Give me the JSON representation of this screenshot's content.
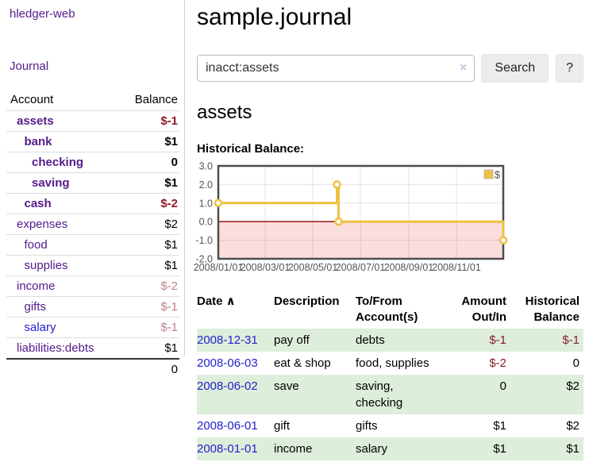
{
  "brand": "hledger-web",
  "nav": {
    "journal": "Journal"
  },
  "sidebar": {
    "header": {
      "account": "Account",
      "balance": "Balance"
    },
    "accounts": [
      {
        "name": "assets",
        "balance": "$-1",
        "level": 1,
        "bold": true,
        "balance_tone": "negative-strong",
        "link_color": "purple"
      },
      {
        "name": "bank",
        "balance": "$1",
        "level": 2,
        "bold": true,
        "balance_tone": "normal",
        "link_color": "purple"
      },
      {
        "name": "checking",
        "balance": "0",
        "level": 3,
        "bold": true,
        "balance_tone": "normal",
        "link_color": "purple"
      },
      {
        "name": "saving",
        "balance": "$1",
        "level": 3,
        "bold": true,
        "balance_tone": "normal",
        "link_color": "purple"
      },
      {
        "name": "cash",
        "balance": "$-2",
        "level": 2,
        "bold": true,
        "balance_tone": "negative-strong",
        "link_color": "purple"
      },
      {
        "name": "expenses",
        "balance": "$2",
        "level": 1,
        "bold": false,
        "balance_tone": "normal",
        "link_color": "purple"
      },
      {
        "name": "food",
        "balance": "$1",
        "level": 2,
        "bold": false,
        "balance_tone": "normal",
        "link_color": "purple"
      },
      {
        "name": "supplies",
        "balance": "$1",
        "level": 2,
        "bold": false,
        "balance_tone": "normal",
        "link_color": "purple"
      },
      {
        "name": "income",
        "balance": "$-2",
        "level": 1,
        "bold": false,
        "balance_tone": "negative-soft",
        "link_color": "purple"
      },
      {
        "name": "gifts",
        "balance": "$-1",
        "level": 2,
        "bold": false,
        "balance_tone": "negative-soft",
        "link_color": "purple"
      },
      {
        "name": "salary",
        "balance": "$-1",
        "level": 2,
        "bold": false,
        "balance_tone": "negative-soft",
        "link_color": "blue"
      },
      {
        "name": "liabilities:debts",
        "balance": "$1",
        "level": 1,
        "bold": false,
        "balance_tone": "normal",
        "link_color": "purple"
      }
    ],
    "total": "0"
  },
  "header": {
    "title": "sample.journal"
  },
  "search": {
    "value": "inacct:assets",
    "clear_icon": "×",
    "search_button": "Search",
    "help_button": "?"
  },
  "account_view": {
    "title": "assets",
    "chart_heading": "Historical Balance:"
  },
  "chart_data": {
    "type": "line",
    "title": "Historical Balance",
    "step": true,
    "xrange": [
      "2008-01-01",
      "2008-12-31"
    ],
    "ylim": [
      -2,
      3
    ],
    "yticks": [
      3.0,
      2.0,
      1.0,
      0.0,
      -1.0,
      -2.0
    ],
    "xticks": [
      "2008/01/01",
      "2008/03/01",
      "2008/05/01",
      "2008/07/01",
      "2008/09/01",
      "2008/11/01"
    ],
    "series": [
      {
        "name": "$",
        "color": "#edc240",
        "points": [
          {
            "date": "2008-01-01",
            "value": 1
          },
          {
            "date": "2008-06-01",
            "value": 2
          },
          {
            "date": "2008-06-03",
            "value": 0
          },
          {
            "date": "2008-12-31",
            "value": -1
          }
        ]
      }
    ],
    "legend_position": "top-right",
    "grid": true,
    "negative_region_color": "#fbdddd",
    "zero_line_color": "#8b0000",
    "axis_text_color": "#545454",
    "border_color": "#4d4d4d"
  },
  "register": {
    "columns": [
      {
        "label": "Date",
        "sort_icon": "∧",
        "align": "left"
      },
      {
        "label": "Description",
        "align": "left"
      },
      {
        "label": "To/From Account(s)",
        "align": "left"
      },
      {
        "label": "Amount Out/In",
        "align": "right"
      },
      {
        "label": "Historical Balance",
        "align": "right"
      }
    ],
    "rows": [
      {
        "date": "2008-12-31",
        "description": "pay off",
        "accounts": "debts",
        "amount": "$-1",
        "amount_negative": true,
        "balance": "$-1",
        "balance_negative": true
      },
      {
        "date": "2008-06-03",
        "description": "eat & shop",
        "accounts": "food, supplies",
        "amount": "$-2",
        "amount_negative": true,
        "balance": "0",
        "balance_negative": false
      },
      {
        "date": "2008-06-02",
        "description": "save",
        "accounts": "saving, checking",
        "amount": "0",
        "amount_negative": false,
        "balance": "$2",
        "balance_negative": false
      },
      {
        "date": "2008-06-01",
        "description": "gift",
        "accounts": "gifts",
        "amount": "$1",
        "amount_negative": false,
        "balance": "$2",
        "balance_negative": false
      },
      {
        "date": "2008-01-01",
        "description": "income",
        "accounts": "salary",
        "amount": "$1",
        "amount_negative": false,
        "balance": "$1",
        "balance_negative": false
      }
    ]
  },
  "colors": {
    "link_purple": "#551a8b",
    "link_blue": "#2222cc",
    "negative_strong": "#8c1b2c",
    "negative_soft": "#c17f88",
    "row_stripe_green": "#ddeeda",
    "accent_gold": "#edc240"
  }
}
